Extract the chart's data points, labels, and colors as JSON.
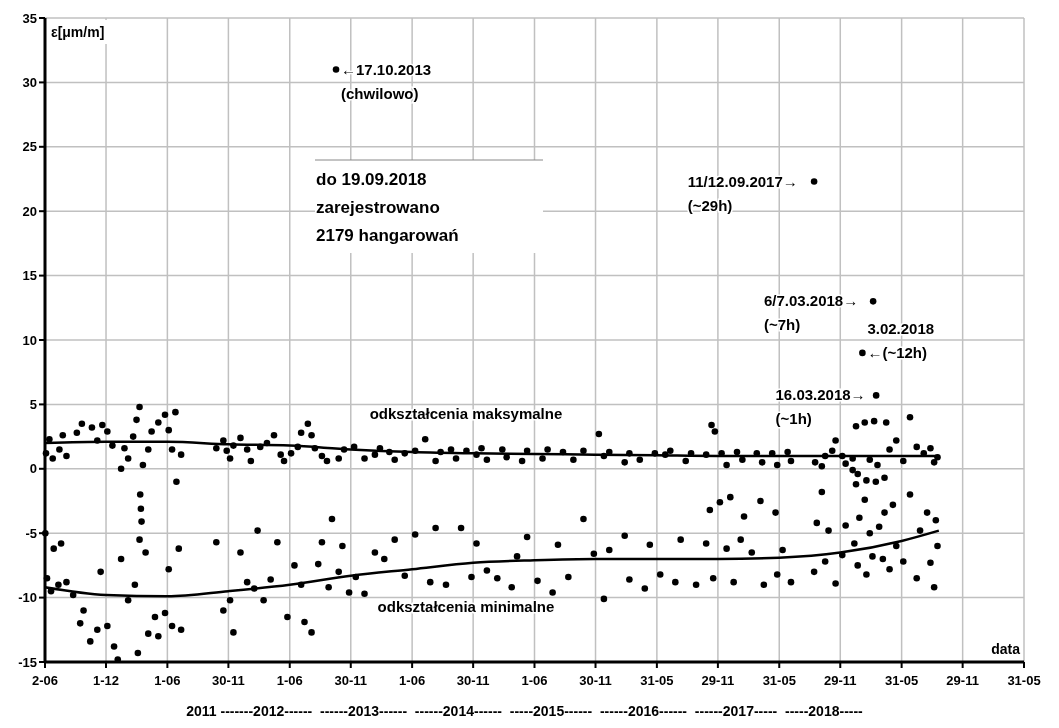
{
  "chart_data": {
    "type": "scatter",
    "ylabel": "ε[μm/m]",
    "xlabel": "data",
    "grid": true,
    "legend": false,
    "marker": "circle",
    "ylim": [
      -15,
      35
    ],
    "yticks": [
      -15,
      -10,
      -5,
      0,
      5,
      10,
      15,
      20,
      25,
      30,
      35
    ],
    "xlim": [
      "2011-06-02",
      "2019-05-31"
    ],
    "xticks": [
      {
        "value": "2011-06-02",
        "label": "2-06"
      },
      {
        "value": "2011-12-01",
        "label": "1-12"
      },
      {
        "value": "2012-06-01",
        "label": "1-06"
      },
      {
        "value": "2012-11-30",
        "label": "30-11"
      },
      {
        "value": "2013-06-01",
        "label": "1-06"
      },
      {
        "value": "2013-11-30",
        "label": "30-11"
      },
      {
        "value": "2014-06-01",
        "label": "1-06"
      },
      {
        "value": "2014-11-30",
        "label": "30-11"
      },
      {
        "value": "2015-06-01",
        "label": "1-06"
      },
      {
        "value": "2015-11-30",
        "label": "30-11"
      },
      {
        "value": "2016-05-31",
        "label": "31-05"
      },
      {
        "value": "2016-11-29",
        "label": "29-11"
      },
      {
        "value": "2017-05-31",
        "label": "31-05"
      },
      {
        "value": "2017-11-29",
        "label": "29-11"
      },
      {
        "value": "2018-05-31",
        "label": "31-05"
      },
      {
        "value": "2018-11-29",
        "label": "29-11"
      },
      {
        "value": "2019-05-31",
        "label": "31-05"
      }
    ],
    "series": [
      {
        "name": "odkształcenia maksymalne",
        "color": "#000000",
        "x": [
          "2011-06-05",
          "2011-06-15",
          "2011-06-25",
          "2011-07-15",
          "2011-07-25",
          "2011-08-05",
          "2011-09-05",
          "2011-09-20",
          "2011-10-20",
          "2011-11-05",
          "2011-11-20",
          "2011-12-05",
          "2011-12-20",
          "2012-01-15",
          "2012-01-25",
          "2012-02-05",
          "2012-02-20",
          "2012-03-01",
          "2012-03-10",
          "2012-03-20",
          "2012-04-05",
          "2012-04-15",
          "2012-05-05",
          "2012-05-25",
          "2012-06-05",
          "2012-06-15",
          "2012-06-25",
          "2012-07-12",
          "2012-10-25",
          "2012-11-15",
          "2012-11-25",
          "2012-12-05",
          "2012-12-15",
          "2013-01-05",
          "2013-01-25",
          "2013-02-05",
          "2013-03-05",
          "2013-03-25",
          "2013-04-15",
          "2013-05-05",
          "2013-05-15",
          "2013-06-05",
          "2013-06-25",
          "2013-07-05",
          "2013-07-25",
          "2013-08-05",
          "2013-08-15",
          "2013-09-05",
          "2013-09-20",
          "2013-10-17",
          "2013-10-25",
          "2013-11-10",
          "2013-12-10",
          "2014-01-10",
          "2014-02-10",
          "2014-02-25",
          "2014-03-25",
          "2014-04-10",
          "2014-05-10",
          "2014-06-10",
          "2014-07-10",
          "2014-08-10",
          "2014-08-25",
          "2014-09-25",
          "2014-10-10",
          "2014-11-10",
          "2014-12-10",
          "2014-12-25",
          "2015-01-10",
          "2015-02-25",
          "2015-03-10",
          "2015-04-25",
          "2015-05-10",
          "2015-06-25",
          "2015-07-10",
          "2015-08-25",
          "2015-09-25",
          "2015-10-25",
          "2015-12-10",
          "2015-12-25",
          "2016-01-10",
          "2016-02-25",
          "2016-03-10",
          "2016-04-10",
          "2016-05-25",
          "2016-06-25",
          "2016-07-10",
          "2016-08-25",
          "2016-09-10",
          "2016-10-25",
          "2016-11-10",
          "2016-11-20",
          "2016-12-10",
          "2016-12-25",
          "2017-01-25",
          "2017-02-10",
          "2017-03-25",
          "2017-04-10",
          "2017-05-10",
          "2017-05-25",
          "2017-06-25",
          "2017-07-05",
          "2017-09-12",
          "2017-09-15",
          "2017-10-05",
          "2017-10-15",
          "2017-11-05",
          "2017-11-15",
          "2017-12-05",
          "2017-12-15",
          "2018-01-05",
          "2018-01-15",
          "2018-01-20",
          "2018-02-03",
          "2018-02-10",
          "2018-02-15",
          "2018-02-25",
          "2018-03-07",
          "2018-03-10",
          "2018-03-16",
          "2018-03-20",
          "2018-04-10",
          "2018-04-15",
          "2018-04-25",
          "2018-05-15",
          "2018-06-05",
          "2018-06-25",
          "2018-07-15",
          "2018-08-05",
          "2018-08-25",
          "2018-09-05",
          "2018-09-15"
        ],
        "values": [
          1.2,
          2.3,
          0.8,
          1.5,
          2.6,
          1.0,
          2.8,
          3.5,
          3.2,
          2.2,
          3.4,
          2.9,
          1.8,
          0.0,
          1.6,
          0.8,
          2.5,
          3.8,
          4.8,
          0.3,
          1.5,
          2.9,
          3.6,
          4.2,
          3.0,
          1.5,
          4.4,
          1.1,
          1.6,
          2.2,
          1.4,
          0.8,
          1.8,
          2.4,
          1.5,
          0.6,
          1.7,
          2.0,
          2.6,
          1.1,
          0.6,
          1.2,
          1.7,
          2.8,
          3.5,
          2.6,
          1.6,
          1.0,
          0.6,
          31,
          0.8,
          1.5,
          1.7,
          0.8,
          1.1,
          1.6,
          1.3,
          0.7,
          1.2,
          1.4,
          2.3,
          0.6,
          1.3,
          1.5,
          0.8,
          1.4,
          1.1,
          1.6,
          0.7,
          1.5,
          0.9,
          0.6,
          1.4,
          0.8,
          1.5,
          1.3,
          0.7,
          1.4,
          2.7,
          1.0,
          1.3,
          0.5,
          1.2,
          0.7,
          1.2,
          1.1,
          1.4,
          0.6,
          1.2,
          1.1,
          3.4,
          2.9,
          1.2,
          0.3,
          1.3,
          0.7,
          1.2,
          0.5,
          1.2,
          0.3,
          1.3,
          0.6,
          22.3,
          0.5,
          0.2,
          1.0,
          1.4,
          2.2,
          1.0,
          0.4,
          0.8,
          3.3,
          -0.4,
          9.0,
          3.6,
          -0.9,
          0.7,
          13.0,
          3.7,
          5.7,
          0.3,
          -0.7,
          3.6,
          1.5,
          2.2,
          0.6,
          4.0,
          1.7,
          1.2,
          1.6,
          0.5,
          0.9
        ]
      },
      {
        "name": "odkształcenia minimalne",
        "color": "#000000",
        "x": [
          "2011-06-03",
          "2011-06-08",
          "2011-06-20",
          "2011-06-28",
          "2011-07-12",
          "2011-07-20",
          "2011-08-05",
          "2011-08-25",
          "2011-09-15",
          "2011-09-25",
          "2011-10-15",
          "2011-11-05",
          "2011-11-15",
          "2011-12-05",
          "2011-12-25",
          "2012-01-05",
          "2012-01-15",
          "2012-02-05",
          "2012-02-25",
          "2012-03-05",
          "2012-03-10",
          "2012-03-12",
          "2012-03-14",
          "2012-03-16",
          "2012-03-28",
          "2012-04-05",
          "2012-04-25",
          "2012-05-05",
          "2012-05-25",
          "2012-06-05",
          "2012-06-15",
          "2012-06-28",
          "2012-07-05",
          "2012-07-12",
          "2012-10-25",
          "2012-11-15",
          "2012-12-05",
          "2012-12-15",
          "2013-01-05",
          "2013-01-25",
          "2013-02-15",
          "2013-02-25",
          "2013-03-15",
          "2013-04-05",
          "2013-04-25",
          "2013-05-25",
          "2013-06-15",
          "2013-07-05",
          "2013-07-15",
          "2013-08-05",
          "2013-08-25",
          "2013-09-05",
          "2013-09-25",
          "2013-10-05",
          "2013-10-25",
          "2013-11-05",
          "2013-11-25",
          "2013-12-15",
          "2014-01-10",
          "2014-02-10",
          "2014-03-10",
          "2014-04-10",
          "2014-05-10",
          "2014-06-10",
          "2014-07-25",
          "2014-08-10",
          "2014-09-10",
          "2014-10-25",
          "2014-11-25",
          "2014-12-10",
          "2015-01-10",
          "2015-02-10",
          "2015-03-25",
          "2015-04-10",
          "2015-05-10",
          "2015-06-10",
          "2015-07-25",
          "2015-08-10",
          "2015-09-10",
          "2015-10-25",
          "2015-11-25",
          "2015-12-25",
          "2016-01-10",
          "2016-02-25",
          "2016-03-10",
          "2016-04-25",
          "2016-05-10",
          "2016-06-10",
          "2016-07-25",
          "2016-08-10",
          "2016-09-25",
          "2016-10-25",
          "2016-11-05",
          "2016-11-15",
          "2016-12-05",
          "2016-12-25",
          "2017-01-05",
          "2017-01-15",
          "2017-02-05",
          "2017-02-15",
          "2017-03-10",
          "2017-04-05",
          "2017-04-15",
          "2017-05-20",
          "2017-05-25",
          "2017-06-10",
          "2017-07-05",
          "2017-09-12",
          "2017-09-20",
          "2017-10-05",
          "2017-10-15",
          "2017-10-25",
          "2017-11-15",
          "2017-12-05",
          "2017-12-15",
          "2018-01-05",
          "2018-01-10",
          "2018-01-15",
          "2018-01-20",
          "2018-01-25",
          "2018-02-10",
          "2018-02-15",
          "2018-02-25",
          "2018-03-05",
          "2018-03-15",
          "2018-03-25",
          "2018-04-05",
          "2018-04-10",
          "2018-04-25",
          "2018-05-05",
          "2018-05-15",
          "2018-06-05",
          "2018-06-25",
          "2018-07-15",
          "2018-07-25",
          "2018-08-15",
          "2018-08-25",
          "2018-09-05",
          "2018-09-10",
          "2018-09-15"
        ],
        "values": [
          -5.0,
          -8.5,
          -9.5,
          -6.2,
          -9.0,
          -5.8,
          -8.8,
          -9.8,
          -12.0,
          -11.0,
          -13.4,
          -12.5,
          -8.0,
          -12.2,
          -13.8,
          -14.8,
          -7.0,
          -10.2,
          -9.0,
          -14.3,
          -5.5,
          -2.0,
          -3.1,
          -4.1,
          -6.5,
          -12.8,
          -11.5,
          -13.0,
          -11.2,
          -7.8,
          -12.2,
          -1.0,
          -6.2,
          -12.5,
          -5.7,
          -11.0,
          -10.2,
          -12.7,
          -6.5,
          -8.8,
          -9.3,
          -4.8,
          -10.2,
          -8.6,
          -5.7,
          -11.5,
          -7.5,
          -9.0,
          -11.9,
          -12.7,
          -7.4,
          -5.7,
          -9.2,
          -3.9,
          -8.0,
          -6.0,
          -9.6,
          -8.4,
          -9.7,
          -6.5,
          -7.0,
          -5.5,
          -8.3,
          -5.1,
          -8.8,
          -4.6,
          -9.0,
          -4.6,
          -8.4,
          -5.8,
          -7.9,
          -8.5,
          -9.2,
          -6.8,
          -5.3,
          -8.7,
          -9.6,
          -5.9,
          -8.4,
          -3.9,
          -6.6,
          -10.1,
          -6.3,
          -5.2,
          -8.6,
          -9.3,
          -5.9,
          -8.2,
          -8.8,
          -5.5,
          -9.0,
          -5.8,
          -3.2,
          -8.5,
          -2.6,
          -6.2,
          -2.2,
          -8.8,
          -5.5,
          -3.7,
          -6.5,
          -2.5,
          -9.0,
          -3.4,
          -8.2,
          -6.3,
          -8.8,
          -8.0,
          -4.2,
          -1.8,
          -7.2,
          -4.8,
          -8.9,
          -6.7,
          -4.4,
          -0.1,
          -5.8,
          -1.2,
          -7.5,
          -3.8,
          -2.4,
          -8.2,
          -5.0,
          -6.8,
          -1.0,
          -4.5,
          -7.0,
          -3.4,
          -7.8,
          -2.8,
          -6.0,
          -7.2,
          -2.0,
          -8.5,
          -4.8,
          -3.4,
          -7.3,
          -9.2,
          -4.0,
          -6.0
        ]
      },
      {
        "type": "line",
        "color": "#000000",
        "marker": "none",
        "x": [
          "2011-06-02",
          "2011-12-01",
          "2012-06-01",
          "2012-11-30",
          "2013-06-01",
          "2013-11-30",
          "2014-06-01",
          "2014-11-30",
          "2015-06-01",
          "2015-11-30",
          "2016-05-31",
          "2016-11-29",
          "2017-05-31",
          "2017-11-29",
          "2018-05-31",
          "2018-09-19"
        ],
        "values": [
          2.0,
          2.1,
          2.1,
          1.9,
          1.8,
          1.5,
          1.3,
          1.2,
          1.15,
          1.1,
          1.05,
          1.0,
          1.0,
          1.0,
          1.0,
          1.0
        ]
      },
      {
        "type": "line",
        "color": "#000000",
        "marker": "none",
        "x": [
          "2011-06-02",
          "2011-12-01",
          "2012-06-01",
          "2012-11-30",
          "2013-06-01",
          "2013-11-30",
          "2014-06-01",
          "2014-11-30",
          "2015-06-01",
          "2015-11-30",
          "2016-05-31",
          "2016-11-29",
          "2017-05-31",
          "2017-11-29",
          "2018-05-31",
          "2018-09-19"
        ],
        "values": [
          -9.2,
          -9.8,
          -9.9,
          -9.5,
          -9.0,
          -8.3,
          -7.8,
          -7.3,
          -7.1,
          -7.0,
          -7.0,
          -7.0,
          -6.9,
          -6.5,
          -5.6,
          -4.8
        ]
      }
    ],
    "annotations": [
      {
        "text": "←17.10.2013\n(chwilowo)",
        "x": "2013-10-17",
        "y": 31
      },
      {
        "text": "11/12.09.2017→\n(~29h)",
        "x": "2017-09-12",
        "y": 22.3
      },
      {
        "text": "6/7.03.2018→\n(~7h)",
        "x": "2018-03-07",
        "y": 13
      },
      {
        "text": "3.02.2018\n←(~12h)",
        "x": "2018-02-03",
        "y": 9
      },
      {
        "text": "16.03.2018→\n(~1h)",
        "x": "2018-03-16",
        "y": 5.7
      },
      "do 19.09.2018\nzarejestrowano\n2179 hangarowań",
      "2011 -------2012------  ------2013------  ------2014------  -----2015------  ------2016------  ------2017-----  -----2018-----"
    ]
  }
}
